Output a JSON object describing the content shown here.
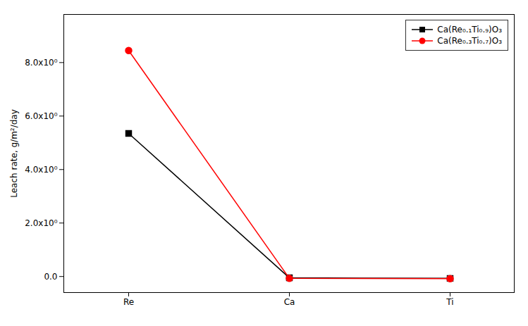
{
  "chart_data": {
    "type": "line",
    "categories": [
      "Re",
      "Ca",
      "Ti"
    ],
    "series": [
      {
        "name": "Ca(Re₀.₁Ti₀.₉)O₃",
        "color": "black",
        "marker": "square",
        "values": [
          5.35,
          -0.05,
          -0.07
        ]
      },
      {
        "name": "Ca(Re₀.₃Ti₀.₇)O₃",
        "color": "red",
        "marker": "circle",
        "values": [
          8.45,
          -0.07,
          -0.08
        ]
      }
    ],
    "ylabel": "Leach rate, g/m²/day",
    "ylim": [
      -0.6,
      9.8
    ],
    "yticks": [
      {
        "value": 0.0,
        "label": "0.0"
      },
      {
        "value": 2.0,
        "label": "2.0x10⁰"
      },
      {
        "value": 4.0,
        "label": "4.0x10⁰"
      },
      {
        "value": 6.0,
        "label": "6.0x10⁰"
      },
      {
        "value": 8.0,
        "label": "8.0x10⁰"
      }
    ],
    "legend": "upper right"
  }
}
